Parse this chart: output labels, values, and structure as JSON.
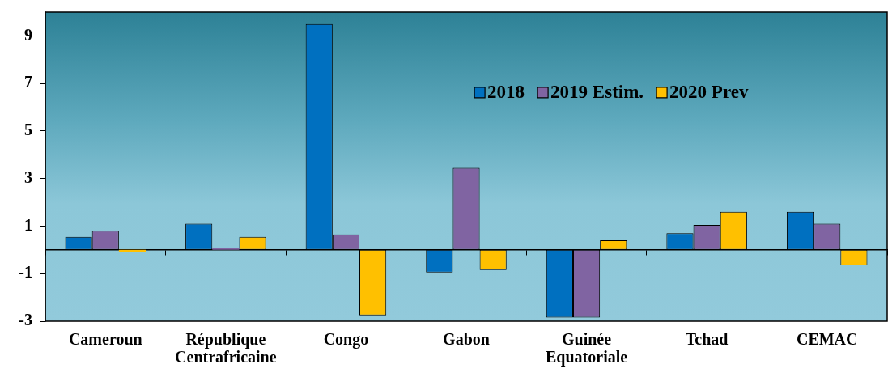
{
  "chart_data": {
    "type": "bar",
    "categories": [
      "Cameroun",
      "République Centrafricaine",
      "Congo",
      "Gabon",
      "Guinée Equatoriale",
      "Tchad",
      "CEMAC"
    ],
    "series": [
      {
        "name": "2018",
        "color": "#0070c0",
        "values": [
          0.55,
          1.1,
          9.5,
          -0.95,
          -2.85,
          0.7,
          1.6
        ]
      },
      {
        "name": "2019 Estim.",
        "color": "#8064a2",
        "values": [
          0.8,
          0.1,
          0.65,
          3.45,
          -2.85,
          1.05,
          1.1
        ]
      },
      {
        "name": "2020 Prev",
        "color": "#ffc000",
        "values": [
          -0.1,
          0.55,
          -2.75,
          -0.85,
          0.4,
          1.6,
          -0.65
        ]
      }
    ],
    "ylim": [
      -3,
      10
    ],
    "yticks": [
      -3,
      -1,
      1,
      3,
      5,
      7,
      9
    ],
    "legend": "top right"
  }
}
